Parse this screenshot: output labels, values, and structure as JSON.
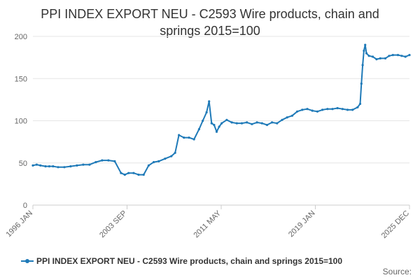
{
  "chart_data": {
    "type": "line",
    "title_lines": [
      "PPI INDEX EXPORT NEU - C2593 Wire products, chain and",
      "springs 2015=100"
    ],
    "xlabel": "",
    "ylabel": "",
    "x_ticks": [
      "1996 JAN",
      "2003 SEP",
      "2011 MAY",
      "2019 JAN",
      "2025 DEC"
    ],
    "x_range": [
      1996.0,
      2025.92
    ],
    "ylim": [
      0,
      210
    ],
    "y_ticks": [
      0,
      50,
      100,
      150,
      200
    ],
    "grid": true,
    "legend_position": "bottom-left",
    "series": [
      {
        "name": "PPI INDEX EXPORT NEU - C2593 Wire products, chain and springs 2015=100",
        "color": "#1f7ab8",
        "x": [
          1996.0,
          1996.3,
          1996.6,
          1997.0,
          1997.3,
          1997.6,
          1998.0,
          1998.5,
          1999.0,
          1999.5,
          2000.0,
          2000.5,
          2001.0,
          2001.5,
          2002.0,
          2002.5,
          2003.0,
          2003.3,
          2003.6,
          2004.0,
          2004.4,
          2004.8,
          2005.2,
          2005.6,
          2006.0,
          2006.5,
          2007.0,
          2007.3,
          2007.6,
          2008.0,
          2008.4,
          2008.8,
          2009.2,
          2009.5,
          2009.8,
          2010.0,
          2010.2,
          2010.4,
          2010.6,
          2010.8,
          2011.0,
          2011.4,
          2011.8,
          2012.2,
          2012.6,
          2013.0,
          2013.4,
          2013.8,
          2014.2,
          2014.6,
          2015.0,
          2015.4,
          2015.8,
          2016.2,
          2016.6,
          2017.0,
          2017.4,
          2017.8,
          2018.2,
          2018.6,
          2019.0,
          2019.4,
          2019.8,
          2020.2,
          2020.6,
          2021.0,
          2021.4,
          2021.8,
          2022.0,
          2022.1,
          2022.2,
          2022.3,
          2022.4,
          2022.5,
          2022.7,
          2023.0,
          2023.3,
          2023.6,
          2024.0,
          2024.3,
          2024.6,
          2025.0,
          2025.3,
          2025.6,
          2025.92
        ],
        "values": [
          47,
          48,
          47,
          46,
          46,
          46,
          45,
          45,
          46,
          47,
          48,
          48,
          51,
          53,
          53,
          52,
          38,
          36,
          38,
          38,
          36,
          36,
          47,
          51,
          52,
          55,
          58,
          62,
          83,
          80,
          80,
          78,
          90,
          100,
          110,
          123,
          97,
          95,
          87,
          93,
          97,
          101,
          98,
          97,
          97,
          98,
          96,
          98,
          97,
          95,
          98,
          97,
          101,
          104,
          106,
          111,
          113,
          114,
          112,
          111,
          113,
          114,
          114,
          115,
          114,
          113,
          113,
          116,
          120,
          144,
          166,
          183,
          190,
          180,
          177,
          176,
          173,
          174,
          174,
          177,
          178,
          178,
          177,
          176,
          178
        ]
      }
    ]
  },
  "source_label": "Source:"
}
